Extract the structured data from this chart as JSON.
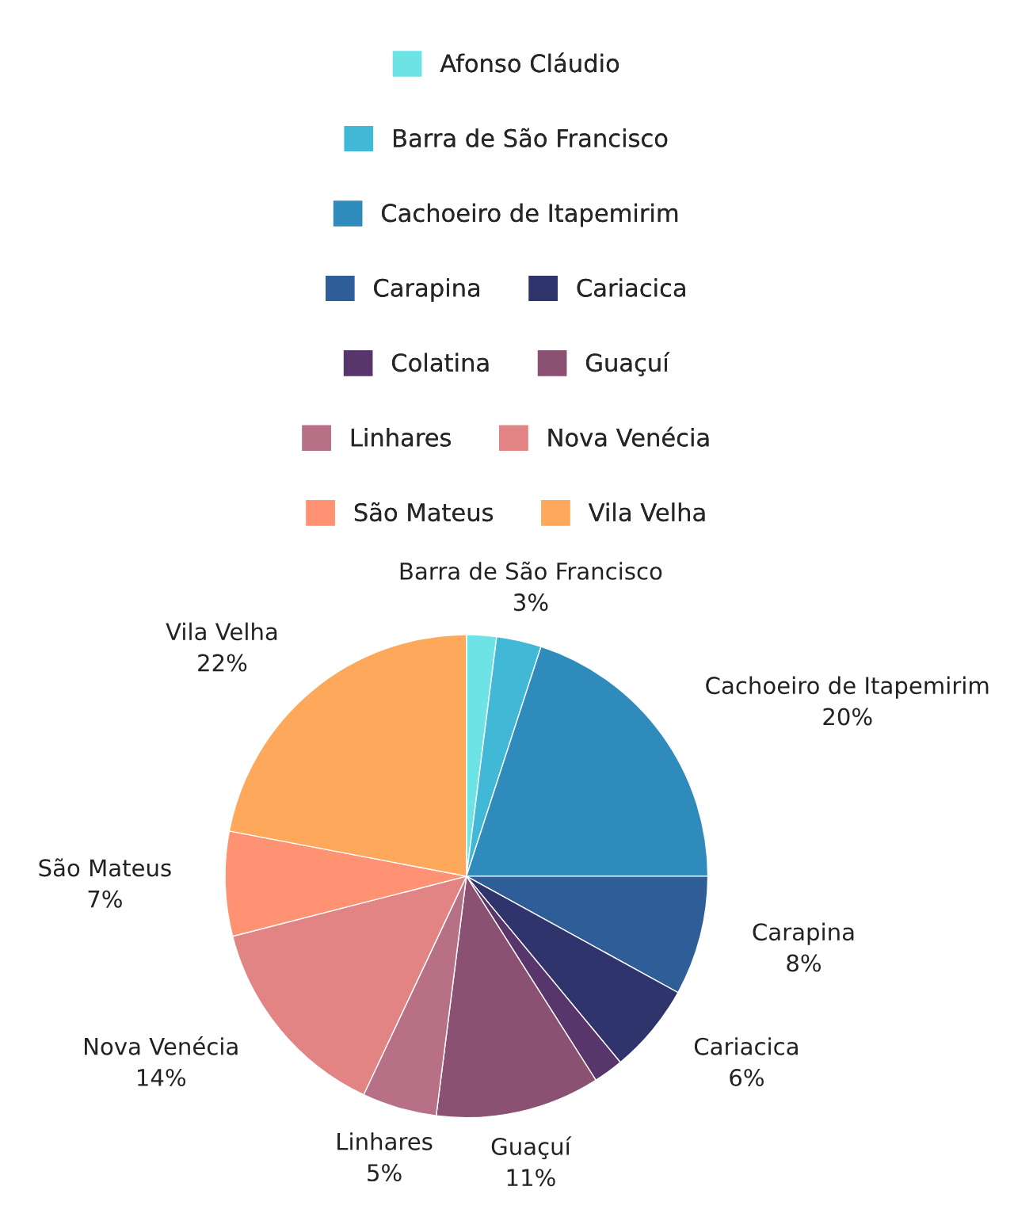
{
  "chart_data": {
    "type": "pie",
    "categories": [
      "Afonso Cláudio",
      "Barra de São Francisco",
      "Cachoeiro de Itapemirim",
      "Carapina",
      "Cariacica",
      "Colatina",
      "Guaçuí",
      "Linhares",
      "Nova Venécia",
      "São Mateus",
      "Vila Velha"
    ],
    "values": [
      2,
      3,
      20,
      8,
      6,
      2,
      11,
      5,
      14,
      7,
      22
    ],
    "value_labels": [
      null,
      "3%",
      "20%",
      "8%",
      "6%",
      null,
      "11%",
      "5%",
      "14%",
      "7%",
      "22%"
    ],
    "colors": [
      "#6ee3e6",
      "#40b8d6",
      "#2e8bbb",
      "#2e5d98",
      "#2f346c",
      "#58356a",
      "#8a5173",
      "#b77086",
      "#e18483",
      "#fe9272",
      "#fea85c"
    ],
    "legend": "top"
  }
}
